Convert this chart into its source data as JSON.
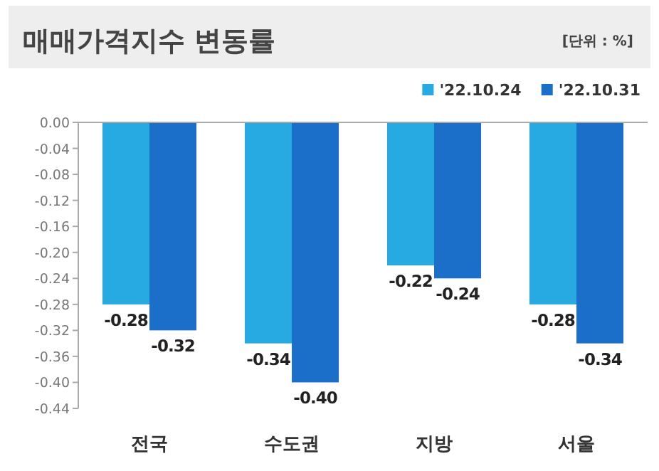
{
  "chart_data": {
    "type": "bar",
    "title": "매매가격지수 변동률",
    "annotations": [
      "[단위 : %]"
    ],
    "categories": [
      "전국",
      "수도권",
      "지방",
      "서울"
    ],
    "series": [
      {
        "name": "'22.10.24",
        "color": "#27aae1",
        "values": [
          -0.28,
          -0.34,
          -0.22,
          -0.28
        ],
        "value_labels": [
          "-0.28",
          "-0.34",
          "-0.22",
          "-0.28"
        ]
      },
      {
        "name": "'22.10.31",
        "color": "#1b6fc8",
        "values": [
          -0.32,
          -0.4,
          -0.24,
          -0.34
        ],
        "value_labels": [
          "-0.32",
          "-0.40",
          "-0.24",
          "-0.34"
        ]
      }
    ],
    "ylim": [
      -0.44,
      0
    ],
    "yticks": [
      {
        "value": 0,
        "label": "0.00"
      },
      {
        "value": -0.04,
        "label": "-0.04"
      },
      {
        "value": -0.08,
        "label": "-0.08"
      },
      {
        "value": -0.12,
        "label": "-0.12"
      },
      {
        "value": -0.16,
        "label": "-0.16"
      },
      {
        "value": -0.2,
        "label": "-0.20"
      },
      {
        "value": -0.24,
        "label": "-0.24"
      },
      {
        "value": -0.28,
        "label": "-0.28"
      },
      {
        "value": -0.32,
        "label": "-0.32"
      },
      {
        "value": -0.36,
        "label": "-0.36"
      },
      {
        "value": -0.4,
        "label": "-0.40"
      },
      {
        "value": -0.44,
        "label": "-0.44"
      }
    ],
    "grid": false,
    "legend": "top right"
  }
}
